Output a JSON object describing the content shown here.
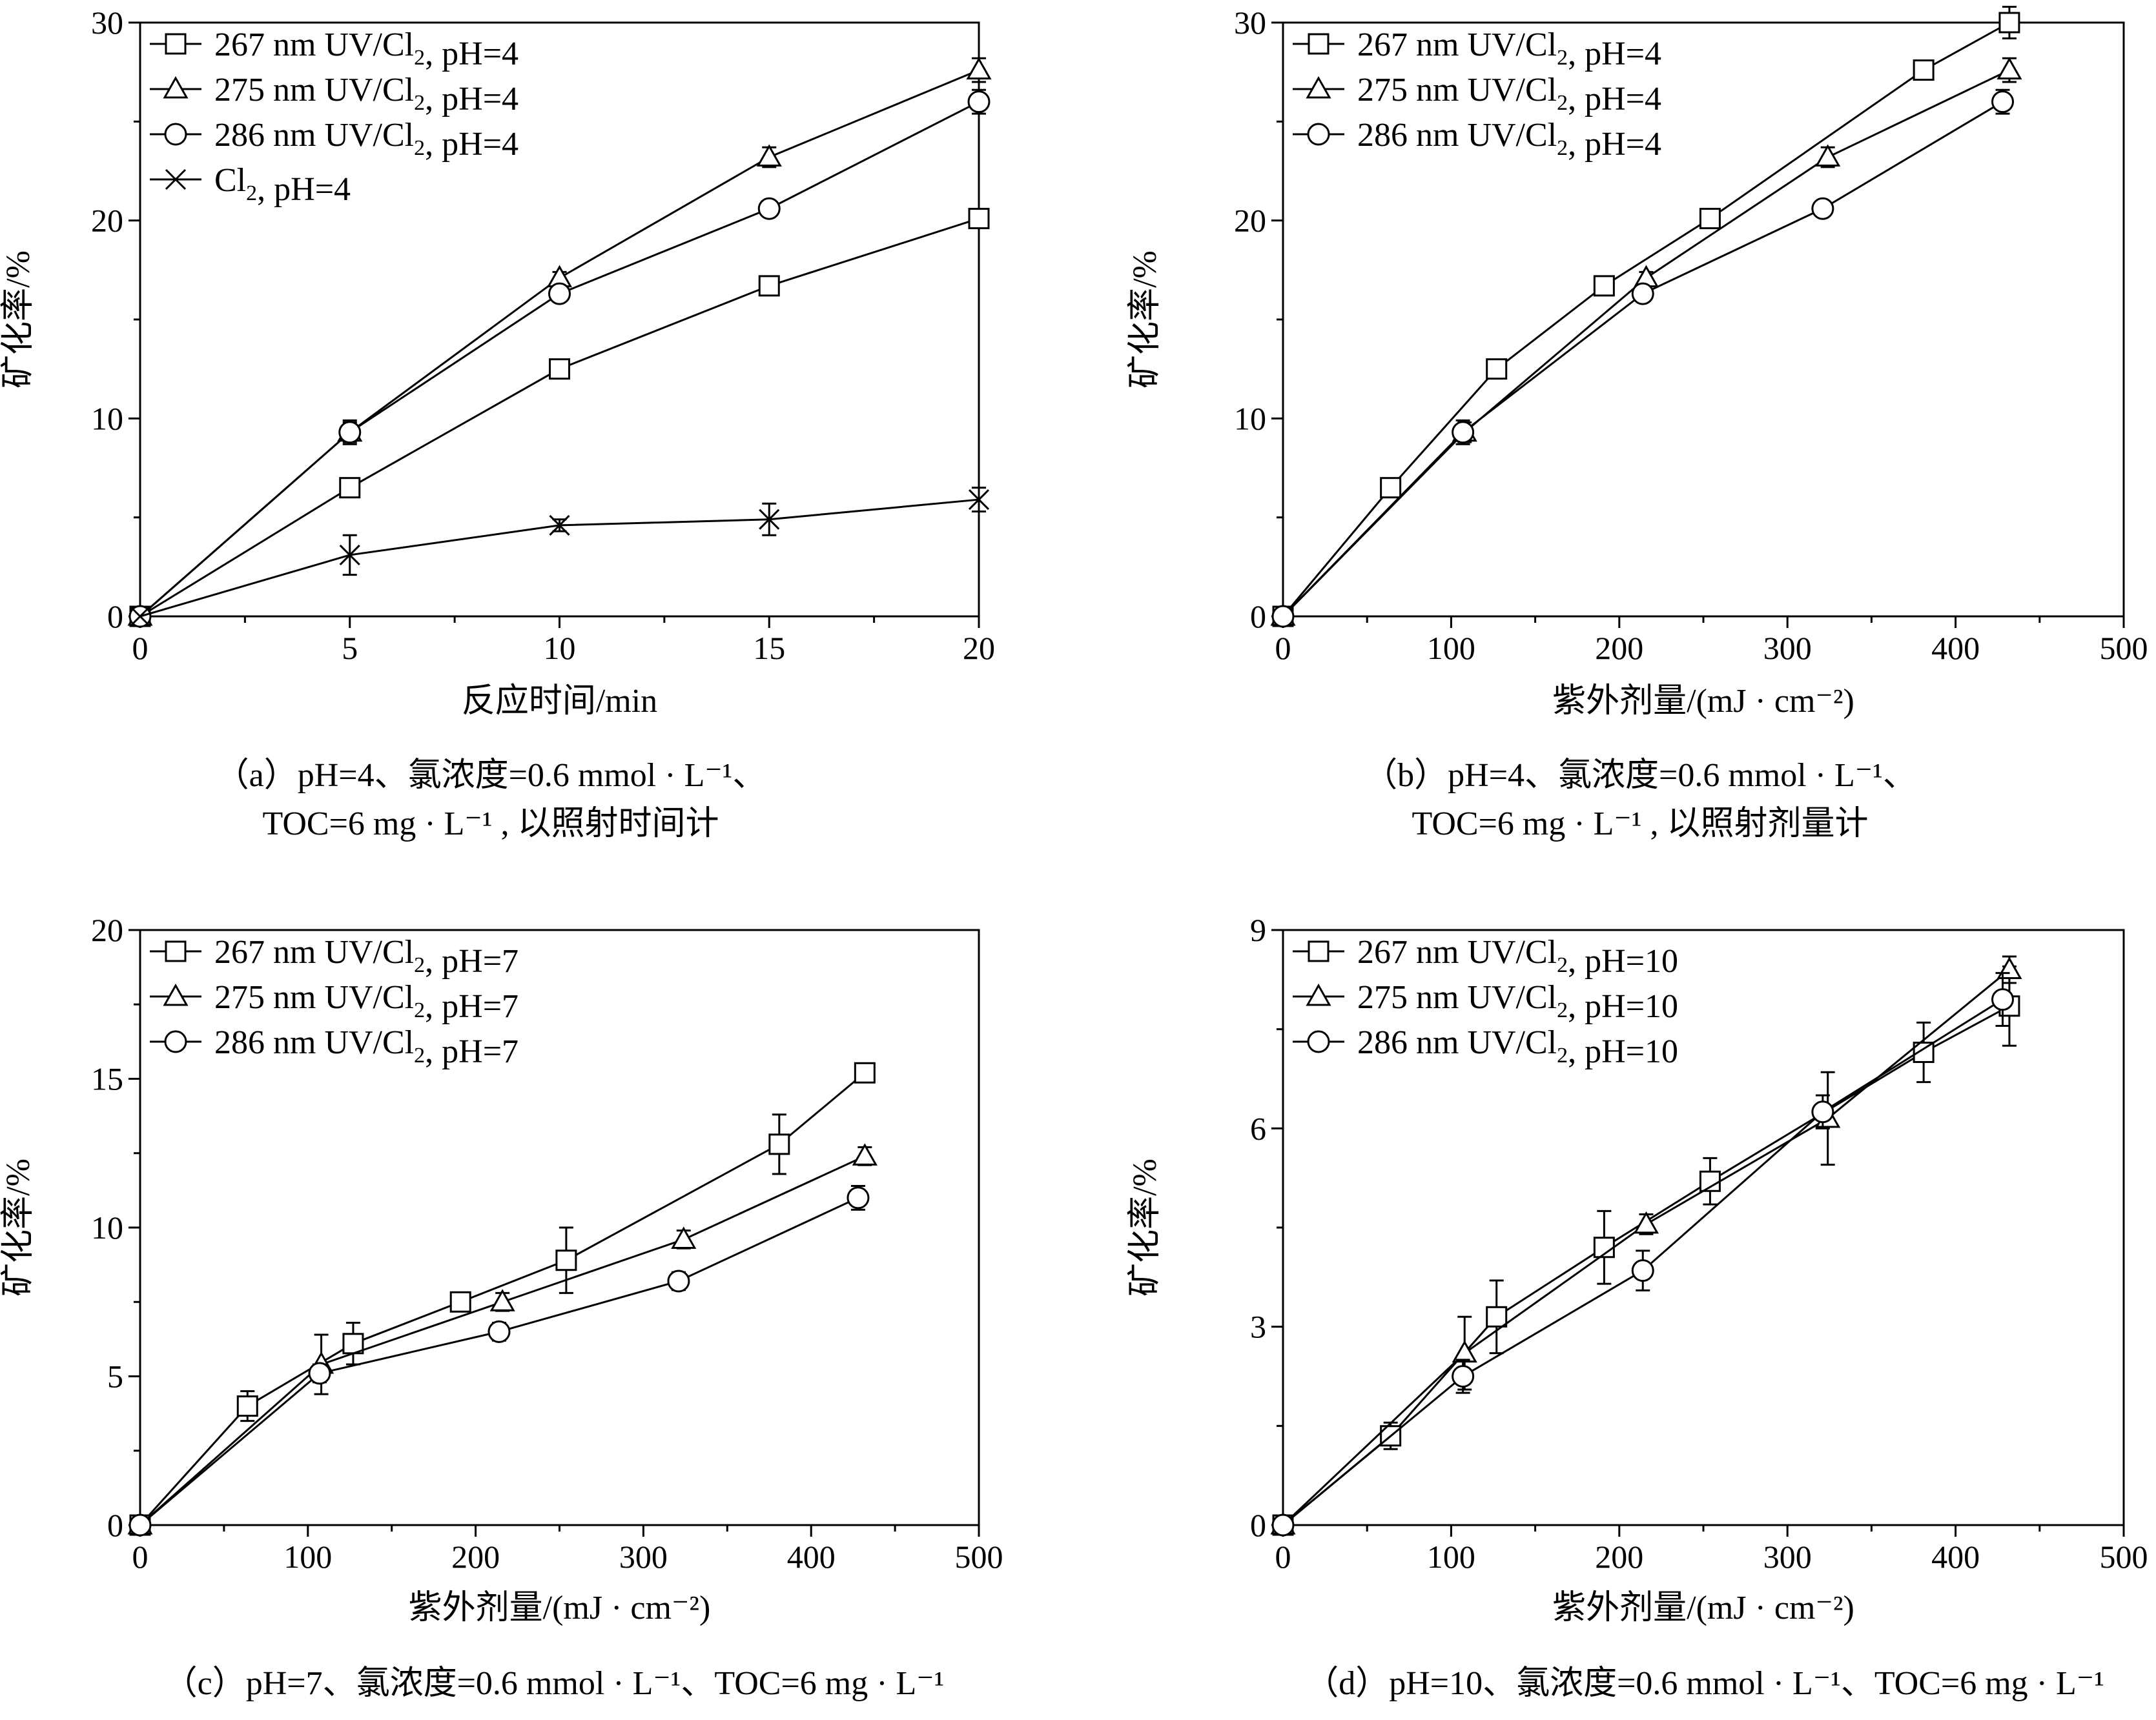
{
  "chart_data": [
    {
      "id": "a",
      "type": "line",
      "caption": [
        "（a）pH=4、氯浓度=0.6 mmol · L⁻¹、",
        "TOC=6 mg · L⁻¹ , 以照射时间计"
      ],
      "xlabel": "反应时间/min",
      "ylabel": "矿化率/%",
      "xlim": [
        0,
        20
      ],
      "ylim": [
        0,
        30
      ],
      "xticks": [
        0,
        5,
        10,
        15,
        20
      ],
      "yticks": [
        0,
        10,
        20,
        30
      ],
      "xticklabels": [
        "0",
        "5",
        "10",
        "15",
        "20"
      ],
      "yticklabels": [
        "0",
        "10",
        "20",
        "30"
      ],
      "legend_position": "top-left",
      "series": [
        {
          "name": "267 nm UV/Cl₂, pH=4",
          "marker": "square",
          "x": [
            0,
            5,
            10,
            15,
            20
          ],
          "y": [
            0,
            6.5,
            12.5,
            16.7,
            20.1
          ],
          "err": [
            0,
            0.3,
            0.3,
            0.3,
            0.3
          ]
        },
        {
          "name": "275 nm UV/Cl₂, pH=4",
          "marker": "triangle",
          "x": [
            0,
            5,
            10,
            15,
            20
          ],
          "y": [
            0,
            9.3,
            17.1,
            23.2,
            27.6
          ],
          "err": [
            0,
            0.5,
            0.3,
            0.5,
            0.6
          ]
        },
        {
          "name": "286 nm UV/Cl₂, pH=4",
          "marker": "circle",
          "x": [
            0,
            5,
            10,
            15,
            20
          ],
          "y": [
            0,
            9.3,
            16.3,
            20.6,
            26.0
          ],
          "err": [
            0,
            0.6,
            0.3,
            0.3,
            0.6
          ]
        },
        {
          "name": "Cl₂, pH=4",
          "marker": "x",
          "x": [
            0,
            5,
            10,
            15,
            20
          ],
          "y": [
            0,
            3.1,
            4.6,
            4.9,
            5.9
          ],
          "err": [
            0,
            1.0,
            0.3,
            0.8,
            0.6
          ]
        }
      ]
    },
    {
      "id": "b",
      "type": "line",
      "caption": [
        "（b）pH=4、氯浓度=0.6 mmol · L⁻¹、",
        "TOC=6 mg · L⁻¹ , 以照射剂量计"
      ],
      "xlabel": "紫外剂量/(mJ · cm⁻²)",
      "ylabel": "矿化率/%",
      "xlim": [
        0,
        500
      ],
      "ylim": [
        0,
        30
      ],
      "xticks": [
        0,
        100,
        200,
        300,
        400,
        500
      ],
      "yticks": [
        0,
        10,
        20,
        30
      ],
      "xticklabels": [
        "0",
        "100",
        "200",
        "300",
        "400",
        "500"
      ],
      "yticklabels": [
        "0",
        "10",
        "20",
        "30"
      ],
      "legend_position": "top-left",
      "series": [
        {
          "name": "267 nm UV/Cl₂, pH=4",
          "marker": "square",
          "x": [
            0,
            64,
            127,
            191,
            254,
            381,
            432
          ],
          "y": [
            0,
            6.5,
            12.5,
            16.7,
            20.1,
            27.6,
            30.0
          ],
          "err": [
            0,
            0.3,
            0.3,
            0.3,
            0.3,
            0.3,
            0.8
          ]
        },
        {
          "name": "275 nm UV/Cl₂, pH=4",
          "marker": "triangle",
          "x": [
            0,
            108,
            216,
            324,
            432
          ],
          "y": [
            0,
            9.3,
            17.1,
            23.2,
            27.6
          ],
          "err": [
            0,
            0.5,
            0.3,
            0.5,
            0.6
          ]
        },
        {
          "name": "286 nm UV/Cl₂, pH=4",
          "marker": "circle",
          "x": [
            0,
            107,
            214,
            321,
            428
          ],
          "y": [
            0,
            9.3,
            16.3,
            20.6,
            26.0
          ],
          "err": [
            0,
            0.6,
            0.3,
            0.3,
            0.6
          ]
        }
      ]
    },
    {
      "id": "c",
      "type": "line",
      "caption": [
        "（c）pH=7、氯浓度=0.6 mmol · L⁻¹、TOC=6 mg · L⁻¹"
      ],
      "xlabel": "紫外剂量/(mJ · cm⁻²)",
      "ylabel": "矿化率/%",
      "xlim": [
        0,
        500
      ],
      "ylim": [
        0,
        20
      ],
      "xticks": [
        0,
        100,
        200,
        300,
        400,
        500
      ],
      "yticks": [
        0,
        5,
        10,
        15,
        20
      ],
      "xticklabels": [
        "0",
        "100",
        "200",
        "300",
        "400",
        "500"
      ],
      "yticklabels": [
        "0",
        "5",
        "10",
        "15",
        "20"
      ],
      "legend_position": "top-left",
      "series": [
        {
          "name": "267 nm UV/Cl₂, pH=7",
          "marker": "square",
          "x": [
            0,
            64,
            127,
            191,
            254,
            381,
            432
          ],
          "y": [
            0,
            4.0,
            6.1,
            7.5,
            8.9,
            12.8,
            15.2
          ],
          "err": [
            0,
            0.5,
            0.7,
            0.3,
            1.1,
            1.0,
            0.3
          ]
        },
        {
          "name": "275 nm UV/Cl₂, pH=7",
          "marker": "triangle",
          "x": [
            0,
            108,
            216,
            324,
            432
          ],
          "y": [
            0,
            5.4,
            7.5,
            9.6,
            12.4
          ],
          "err": [
            0,
            1.0,
            0.3,
            0.3,
            0.3
          ]
        },
        {
          "name": "286 nm UV/Cl₂, pH=7",
          "marker": "circle",
          "x": [
            0,
            107,
            214,
            321,
            428
          ],
          "y": [
            0,
            5.1,
            6.5,
            8.2,
            11.0
          ],
          "err": [
            0,
            0.3,
            0.3,
            0.3,
            0.4
          ]
        }
      ]
    },
    {
      "id": "d",
      "type": "line",
      "caption": [
        "（d）pH=10、氯浓度=0.6 mmol · L⁻¹、TOC=6 mg · L⁻¹"
      ],
      "xlabel": "紫外剂量/(mJ · cm⁻²)",
      "ylabel": "矿化率/%",
      "xlim": [
        0,
        500
      ],
      "ylim": [
        0,
        9
      ],
      "xticks": [
        0,
        100,
        200,
        300,
        400,
        500
      ],
      "yticks": [
        0,
        3,
        6,
        9
      ],
      "xticklabels": [
        "0",
        "100",
        "200",
        "300",
        "400",
        "500"
      ],
      "yticklabels": [
        "0",
        "3",
        "6",
        "9"
      ],
      "legend_position": "top-left",
      "series": [
        {
          "name": "267 nm UV/Cl₂, pH=10",
          "marker": "square",
          "x": [
            0,
            64,
            127,
            191,
            254,
            381,
            432
          ],
          "y": [
            0,
            1.35,
            3.15,
            4.2,
            5.2,
            7.15,
            7.85
          ],
          "err": [
            0,
            0.2,
            0.55,
            0.55,
            0.35,
            0.45,
            0.6
          ]
        },
        {
          "name": "275 nm UV/Cl₂, pH=10",
          "marker": "triangle",
          "x": [
            0,
            108,
            216,
            324,
            432
          ],
          "y": [
            0,
            2.6,
            4.55,
            6.15,
            8.4
          ],
          "err": [
            0,
            0.55,
            0.15,
            0.7,
            0.2
          ]
        },
        {
          "name": "286 nm UV/Cl₂, pH=10",
          "marker": "circle",
          "x": [
            0,
            107,
            214,
            321,
            428
          ],
          "y": [
            0,
            2.25,
            3.85,
            6.25,
            7.95
          ],
          "err": [
            0,
            0.25,
            0.3,
            0.25,
            0.4
          ]
        }
      ]
    }
  ]
}
